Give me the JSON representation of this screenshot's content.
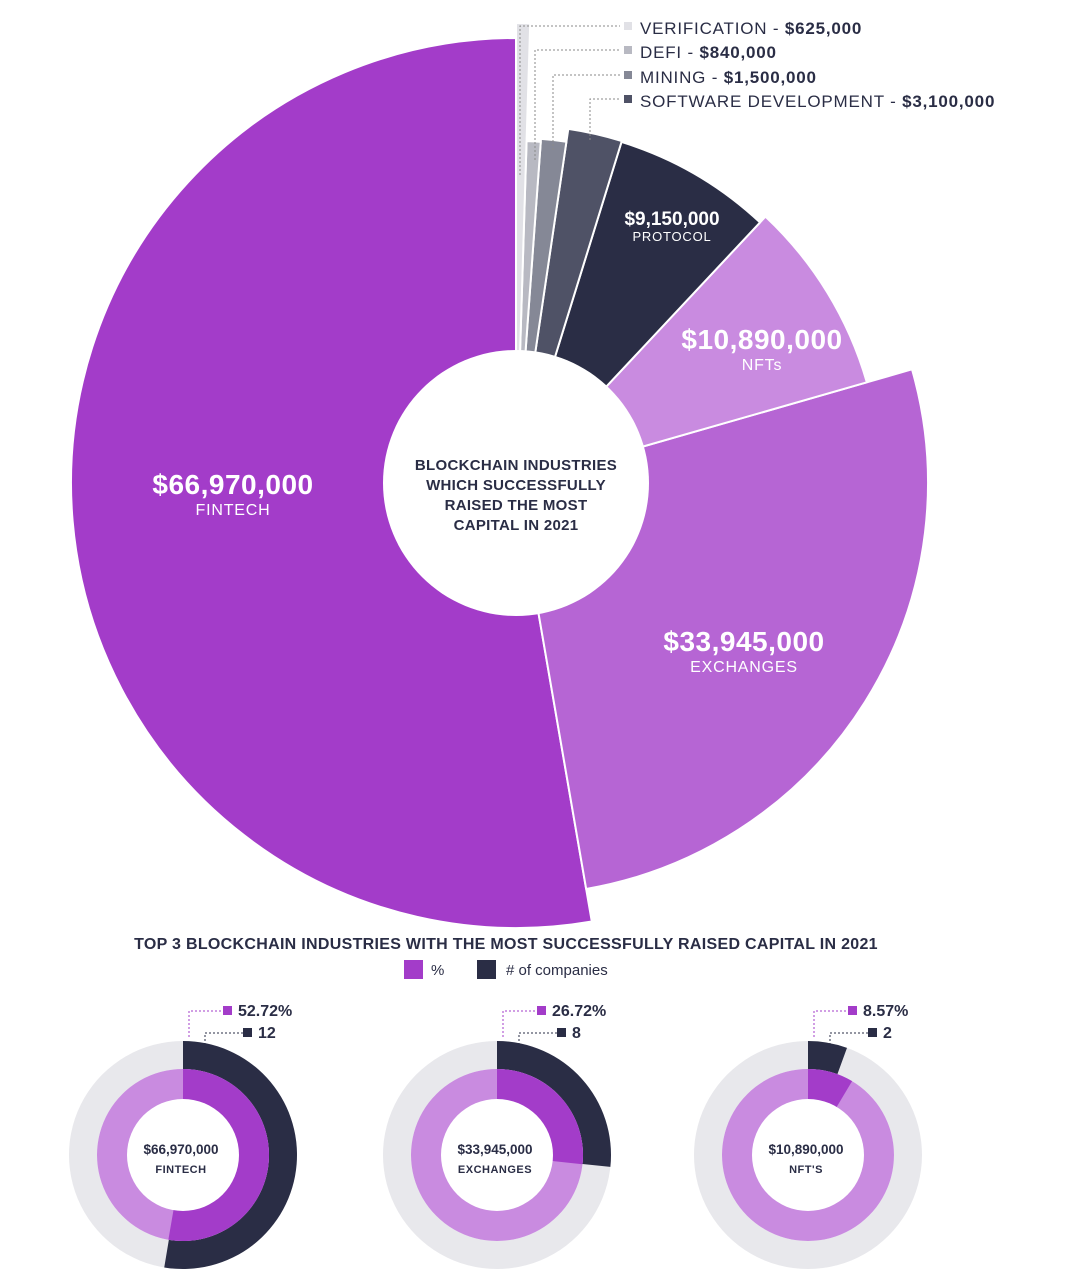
{
  "chart_data": [
    {
      "type": "pie",
      "title": "BLOCKCHAIN INDUSTRIES WHICH SUCCESSFULLY RAISED THE MOST CAPITAL IN 2021",
      "slices": [
        {
          "name": "FINTECH",
          "label": "$66,970,000",
          "value": 66970000,
          "color": "#a33cc9"
        },
        {
          "name": "EXCHANGES",
          "label": "$33,945,000",
          "value": 33945000,
          "color": "#b665d4"
        },
        {
          "name": "NFTs",
          "label": "$10,890,000",
          "value": 10890000,
          "color": "#c98be0"
        },
        {
          "name": "PROTOCOL",
          "label": "$9,150,000",
          "value": 9150000,
          "color": "#2a2d45"
        },
        {
          "name": "SOFTWARE DEVELOPMENT",
          "label": "$3,100,000",
          "value": 3100000,
          "color": "#4f5266"
        },
        {
          "name": "MINING",
          "label": "$1,500,000",
          "value": 1500000,
          "color": "#858896"
        },
        {
          "name": "DEFI",
          "label": "$840,000",
          "value": 840000,
          "color": "#b8b9c2"
        },
        {
          "name": "VERIFICATION",
          "label": "$625,000",
          "value": 625000,
          "color": "#e1e1e6"
        }
      ]
    },
    {
      "type": "pie",
      "title": "TOP 3 BLOCKCHAIN INDUSTRIES WITH THE MOST SUCCESSFULLY RAISED CAPITAL IN 2021",
      "legend": [
        {
          "name": "%",
          "color": "#a33cc9"
        },
        {
          "name": "# of companies",
          "color": "#2a2d45"
        }
      ],
      "donuts": [
        {
          "name": "FINTECH",
          "amount": "$66,970,000",
          "percent": 52.72,
          "percent_label": "52.72%",
          "companies": 12,
          "companies_label": "12"
        },
        {
          "name": "EXCHANGES",
          "amount": "$33,945,000",
          "percent": 26.72,
          "percent_label": "26.72%",
          "companies": 8,
          "companies_label": "8"
        },
        {
          "name": "NFT'S",
          "amount": "$10,890,000",
          "percent": 8.57,
          "percent_label": "8.57%",
          "companies": 2,
          "companies_label": "2"
        }
      ]
    }
  ]
}
